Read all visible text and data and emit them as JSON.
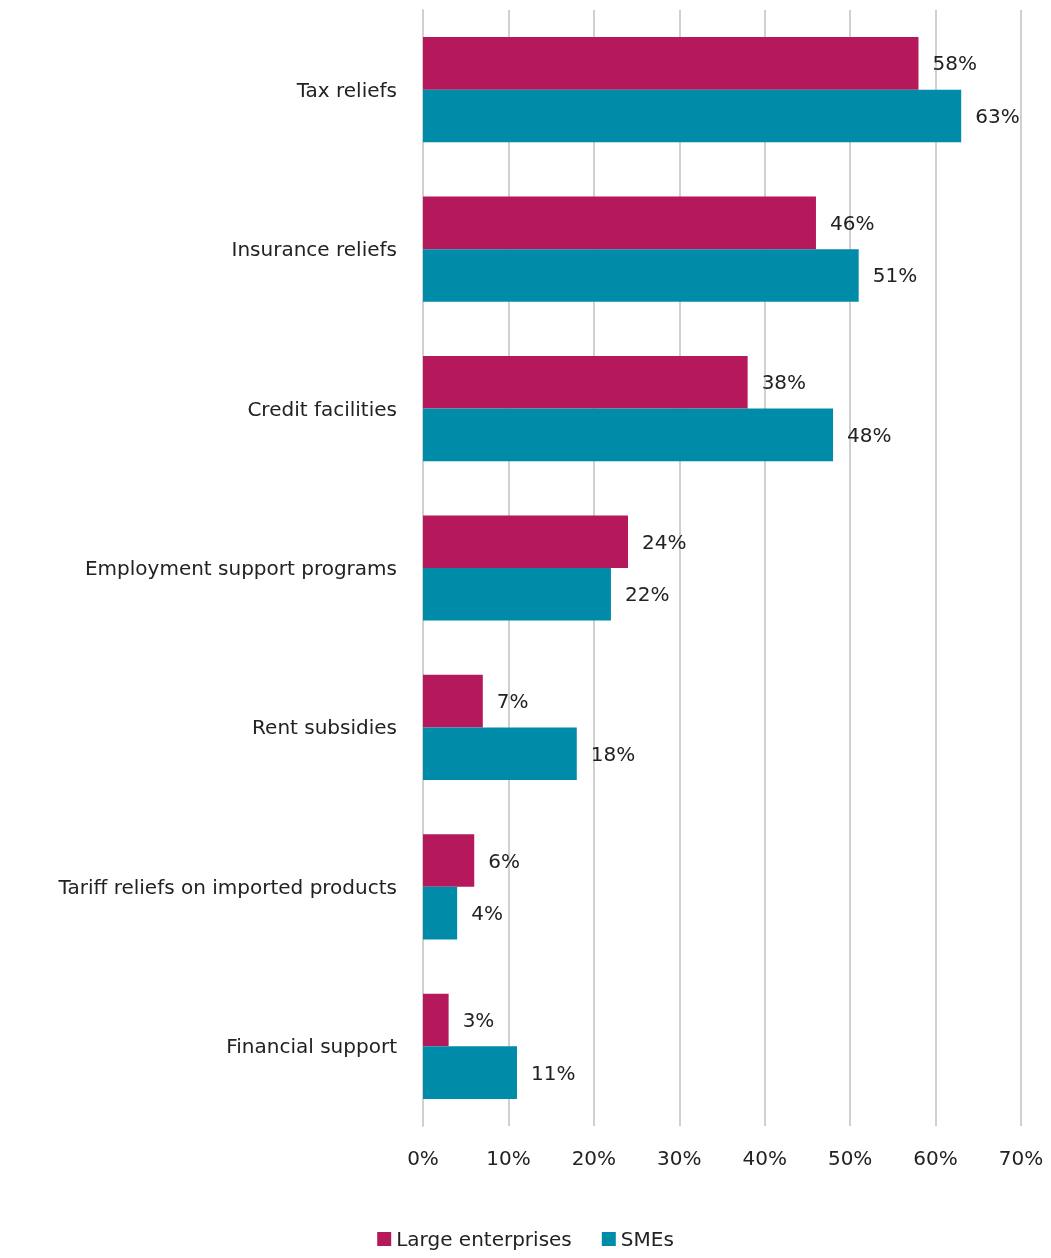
{
  "chart_data": {
    "type": "bar",
    "orientation": "horizontal",
    "categories": [
      "Tax reliefs",
      "Insurance reliefs",
      "Credit facilities",
      "Employment support programs",
      "Rent subsidies",
      "Tariff reliefs on imported products",
      "Financial support"
    ],
    "series": [
      {
        "name": "Large enterprises",
        "color": "#b5195b",
        "values": [
          58,
          46,
          38,
          24,
          7,
          6,
          3
        ],
        "value_labels": [
          "58%",
          "46%",
          "38%",
          "24%",
          "7%",
          "6%",
          "3%"
        ]
      },
      {
        "name": "SMEs",
        "color": "#008ba8",
        "values": [
          63,
          51,
          48,
          22,
          18,
          4,
          11
        ],
        "value_labels": [
          "63%",
          "51%",
          "48%",
          "22%",
          "18%",
          "4%",
          "11%"
        ]
      }
    ],
    "xlim": [
      0,
      70
    ],
    "xticks": [
      {
        "value": 0,
        "label": "0%"
      },
      {
        "value": 10,
        "label": "10%"
      },
      {
        "value": 20,
        "label": "20%"
      },
      {
        "value": 30,
        "label": "30%"
      },
      {
        "value": 40,
        "label": "40%"
      },
      {
        "value": 50,
        "label": "50%"
      },
      {
        "value": 60,
        "label": "60%"
      },
      {
        "value": 70,
        "label": "70%"
      }
    ],
    "grid": "x",
    "legend": "bottom"
  }
}
